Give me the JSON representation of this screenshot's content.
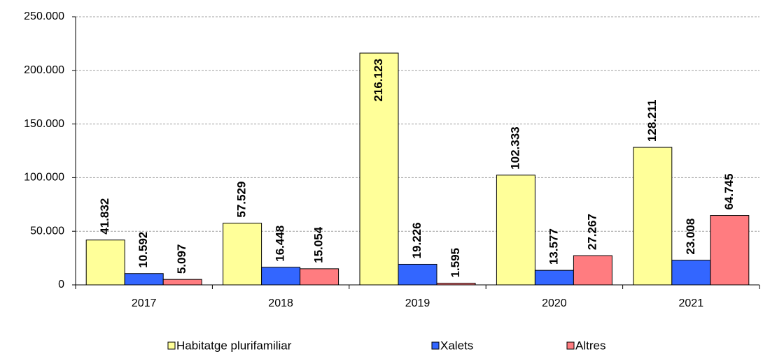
{
  "chart_data": {
    "type": "bar",
    "categories": [
      "2017",
      "2018",
      "2019",
      "2020",
      "2021"
    ],
    "series": [
      {
        "name": "Habitatge plurifamiliar",
        "color": "#ffff99",
        "values": [
          41832,
          57529,
          216123,
          102333,
          128211
        ],
        "value_labels": [
          "41.832",
          "57.529",
          "216.123",
          "102.333",
          "128.211"
        ]
      },
      {
        "name": "Xalets",
        "color": "#3366ff",
        "values": [
          10592,
          16448,
          19226,
          13577,
          23008
        ],
        "value_labels": [
          "10.592",
          "16.448",
          "19.226",
          "13.577",
          "23.008"
        ]
      },
      {
        "name": "Altres",
        "color": "#ff7c80",
        "values": [
          5097,
          15054,
          1595,
          27267,
          64745
        ],
        "value_labels": [
          "5.097",
          "15.054",
          "1.595",
          "27.267",
          "64.745"
        ]
      }
    ],
    "ylim": [
      0,
      250000
    ],
    "yticks": [
      0,
      {
        "value": 50000,
        "label": "50.000"
      },
      {
        "value": 100000,
        "label": "100.000"
      },
      {
        "value": 150000,
        "label": "150.000"
      },
      {
        "value": 200000,
        "label": "200.000"
      },
      {
        "value": 250000,
        "label": "250.000"
      }
    ],
    "grid": true,
    "legend": "bottom"
  }
}
